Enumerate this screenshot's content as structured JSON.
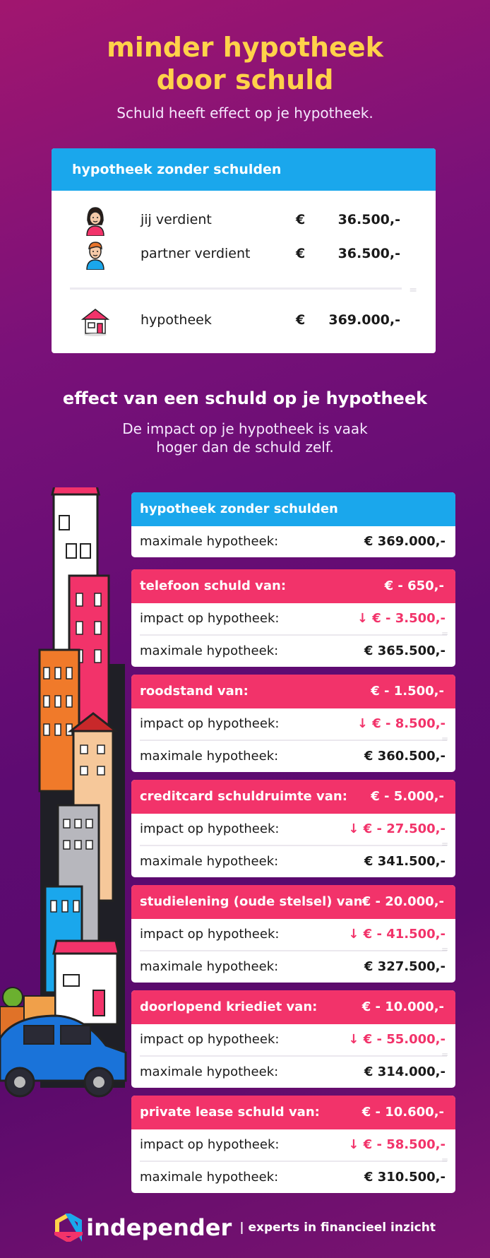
{
  "header": {
    "title_line1": "minder hypotheek",
    "title_line2": "door schuld",
    "subtitle": "Schuld heeft effect op je hypotheek."
  },
  "top_card": {
    "heading": "hypotheek zonder schulden",
    "rows": [
      {
        "icon": "woman-icon",
        "label": "jij verdient",
        "currency": "€",
        "amount": "36.500,-"
      },
      {
        "icon": "man-icon",
        "label": "partner verdient",
        "currency": "€",
        "amount": "36.500,-"
      },
      {
        "icon": "house-icon",
        "label": "hypotheek",
        "currency": "€",
        "amount": "369.000,-"
      }
    ]
  },
  "section2": {
    "title": "effect van een schuld op je hypotheek",
    "sub_line1": "De impact op je hypotheek is vaak",
    "sub_line2": "hoger dan de schuld zelf."
  },
  "baseline": {
    "heading": "hypotheek zonder schulden",
    "label": "maximale hypotheek:",
    "value": "€ 369.000,-"
  },
  "debts": [
    {
      "heading": "telefoon schuld van:",
      "debt": "€     - 650,-",
      "impact_label": "impact op hypotheek:",
      "impact": "- 3.500,-",
      "max_label": "maximale hypotheek:",
      "max": "€ 365.500,-"
    },
    {
      "heading": "roodstand van:",
      "debt": "€   - 1.500,-",
      "impact_label": "impact op hypotheek:",
      "impact": "- 8.500,-",
      "max_label": "maximale hypotheek:",
      "max": "€ 360.500,-"
    },
    {
      "heading": "creditcard schuldruimte van:",
      "debt": "€   - 5.000,-",
      "impact_label": "impact op hypotheek:",
      "impact": "- 27.500,-",
      "max_label": "maximale hypotheek:",
      "max": "€ 341.500,-"
    },
    {
      "heading": "studielening (oude stelsel) van:",
      "debt": "€ - 20.000,-",
      "impact_label": "impact op hypotheek:",
      "impact": "- 41.500,-",
      "max_label": "maximale hypotheek:",
      "max": "€ 327.500,-"
    },
    {
      "heading": "doorlopend kriediet van:",
      "debt": "€ - 10.000,-",
      "impact_label": "impact op hypotheek:",
      "impact": "- 55.000,-",
      "max_label": "maximale hypotheek:",
      "max": "€ 314.000,-"
    },
    {
      "heading": "private lease schuld van:",
      "debt": "€ - 10.600,-",
      "impact_label": "impact op hypotheek:",
      "impact": "- 58.500,-",
      "max_label": "maximale hypotheek:",
      "max": "€ 310.500,-"
    }
  ],
  "impact_prefix": "↓ €",
  "footer": {
    "brand": "independer",
    "tagline": "| experts in financieel inzicht"
  },
  "colors": {
    "title": "#ffd24a",
    "blue_header": "#1aa7ec",
    "red_header": "#f2336a",
    "bg_purple": "#5e0b72"
  }
}
